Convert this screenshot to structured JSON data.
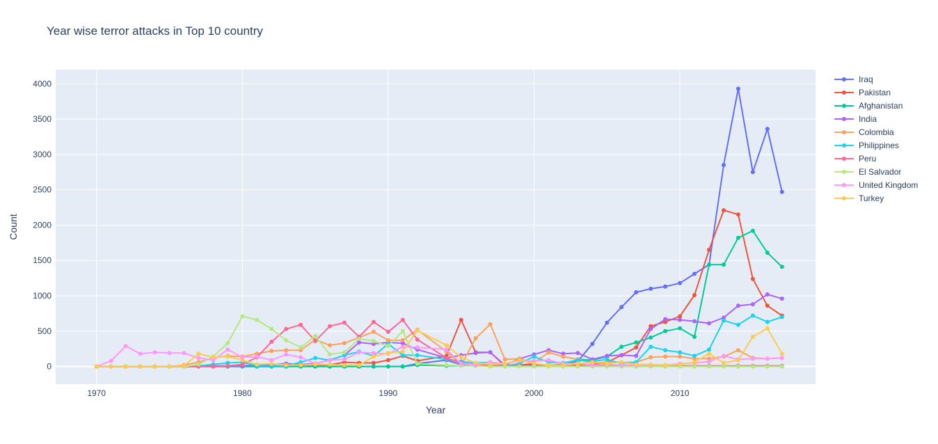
{
  "chart_data": {
    "type": "line",
    "mode": "lines+markers",
    "title": "Year wise terror attacks in Top 10 country",
    "xlabel": "Year",
    "ylabel": "Count",
    "xlim": [
      1967.2,
      2019.3
    ],
    "ylim": [
      -250,
      4200
    ],
    "xticks": [
      1970,
      1980,
      1990,
      2000,
      2010
    ],
    "yticks": [
      0,
      500,
      1000,
      1500,
      2000,
      2500,
      3000,
      3500,
      4000
    ],
    "grid": true,
    "legend_position": "top-right",
    "x": [
      1970,
      1971,
      1972,
      1973,
      1974,
      1975,
      1976,
      1977,
      1978,
      1979,
      1980,
      1981,
      1982,
      1983,
      1984,
      1985,
      1986,
      1987,
      1988,
      1989,
      1990,
      1991,
      1992,
      1994,
      1995,
      1996,
      1997,
      1998,
      1999,
      2000,
      2001,
      2002,
      2003,
      2004,
      2005,
      2006,
      2007,
      2008,
      2009,
      2010,
      2011,
      2012,
      2013,
      2014,
      2015,
      2016,
      2017
    ],
    "series": [
      {
        "name": "Iraq",
        "color": "#636efa",
        "values": [
          0,
          0,
          0,
          0,
          0,
          0,
          0,
          0,
          0,
          0,
          0,
          0,
          0,
          0,
          0,
          0,
          0,
          0,
          0,
          0,
          0,
          0,
          40,
          90,
          25,
          30,
          20,
          5,
          25,
          30,
          20,
          30,
          75,
          320,
          620,
          840,
          1050,
          1100,
          1130,
          1180,
          1310,
          1440,
          2850,
          3930,
          2750,
          3360,
          2470
        ]
      },
      {
        "name": "Pakistan",
        "color": "#ef553b",
        "values": [
          0,
          0,
          0,
          0,
          0,
          0,
          0,
          0,
          0,
          0,
          0,
          0,
          0,
          10,
          20,
          20,
          25,
          60,
          50,
          50,
          90,
          150,
          80,
          150,
          660,
          200,
          200,
          10,
          20,
          40,
          10,
          20,
          20,
          30,
          60,
          160,
          270,
          570,
          630,
          710,
          1010,
          1650,
          2210,
          2150,
          1240,
          860,
          720
        ]
      },
      {
        "name": "Afghanistan",
        "color": "#00cc96",
        "values": [
          0,
          0,
          0,
          0,
          0,
          0,
          0,
          0,
          0,
          0,
          0,
          0,
          0,
          0,
          0,
          0,
          0,
          0,
          0,
          0,
          0,
          0,
          20,
          10,
          10,
          10,
          10,
          5,
          10,
          10,
          20,
          10,
          100,
          90,
          140,
          280,
          340,
          410,
          500,
          540,
          420,
          1440,
          1440,
          1820,
          1920,
          1610,
          1410
        ]
      },
      {
        "name": "India",
        "color": "#ab63fa",
        "values": [
          0,
          0,
          0,
          0,
          0,
          0,
          0,
          0,
          10,
          10,
          10,
          20,
          30,
          40,
          30,
          40,
          90,
          160,
          340,
          320,
          340,
          330,
          240,
          120,
          160,
          190,
          200,
          20,
          110,
          170,
          230,
          180,
          190,
          100,
          150,
          160,
          150,
          530,
          670,
          660,
          640,
          610,
          690,
          860,
          880,
          1020,
          960
        ]
      },
      {
        "name": "Colombia",
        "color": "#ffa15a",
        "values": [
          0,
          0,
          0,
          0,
          0,
          0,
          20,
          60,
          120,
          150,
          140,
          180,
          220,
          230,
          230,
          380,
          300,
          330,
          410,
          490,
          370,
          370,
          520,
          210,
          20,
          400,
          600,
          100,
          110,
          50,
          200,
          140,
          100,
          50,
          60,
          60,
          60,
          130,
          140,
          140,
          110,
          110,
          140,
          230,
          120,
          110,
          120
        ]
      },
      {
        "name": "Philippines",
        "color": "#19d3f3",
        "values": [
          0,
          0,
          0,
          0,
          0,
          0,
          0,
          10,
          30,
          50,
          60,
          10,
          10,
          10,
          60,
          120,
          90,
          160,
          210,
          150,
          320,
          160,
          160,
          100,
          70,
          50,
          60,
          10,
          40,
          140,
          60,
          50,
          90,
          70,
          100,
          40,
          60,
          280,
          230,
          200,
          150,
          240,
          650,
          590,
          720,
          630,
          700
        ]
      },
      {
        "name": "Peru",
        "color": "#ff6692",
        "values": [
          0,
          0,
          0,
          0,
          0,
          0,
          0,
          0,
          0,
          10,
          30,
          130,
          350,
          530,
          590,
          360,
          570,
          620,
          420,
          630,
          490,
          660,
          380,
          120,
          50,
          20,
          20,
          10,
          10,
          10,
          10,
          10,
          10,
          10,
          10,
          10,
          10,
          10,
          10,
          10,
          10,
          10,
          10,
          10,
          10,
          10,
          10
        ]
      },
      {
        "name": "El Salvador",
        "color": "#b6e880",
        "values": [
          0,
          0,
          0,
          0,
          0,
          0,
          0,
          30,
          140,
          330,
          710,
          660,
          530,
          370,
          270,
          430,
          170,
          200,
          390,
          360,
          290,
          500,
          40,
          20,
          10,
          10,
          0,
          0,
          0,
          0,
          0,
          0,
          0,
          0,
          0,
          0,
          0,
          0,
          0,
          0,
          0,
          0,
          0,
          0,
          0,
          0,
          0
        ]
      },
      {
        "name": "United Kingdom",
        "color": "#ff97ff",
        "values": [
          0,
          80,
          290,
          180,
          200,
          190,
          190,
          120,
          90,
          240,
          130,
          140,
          90,
          170,
          130,
          40,
          90,
          100,
          200,
          190,
          180,
          280,
          270,
          240,
          40,
          20,
          60,
          40,
          80,
          80,
          90,
          40,
          40,
          20,
          30,
          20,
          20,
          20,
          20,
          40,
          50,
          70,
          150,
          100,
          110,
          110,
          120
        ]
      },
      {
        "name": "Turkey",
        "color": "#fecb52",
        "values": [
          0,
          0,
          0,
          0,
          0,
          0,
          10,
          180,
          130,
          140,
          90,
          30,
          40,
          20,
          20,
          30,
          30,
          20,
          20,
          140,
          190,
          210,
          510,
          300,
          130,
          50,
          30,
          40,
          90,
          40,
          20,
          20,
          40,
          60,
          40,
          60,
          30,
          30,
          20,
          30,
          60,
          180,
          50,
          90,
          420,
          540,
          180
        ]
      }
    ]
  }
}
